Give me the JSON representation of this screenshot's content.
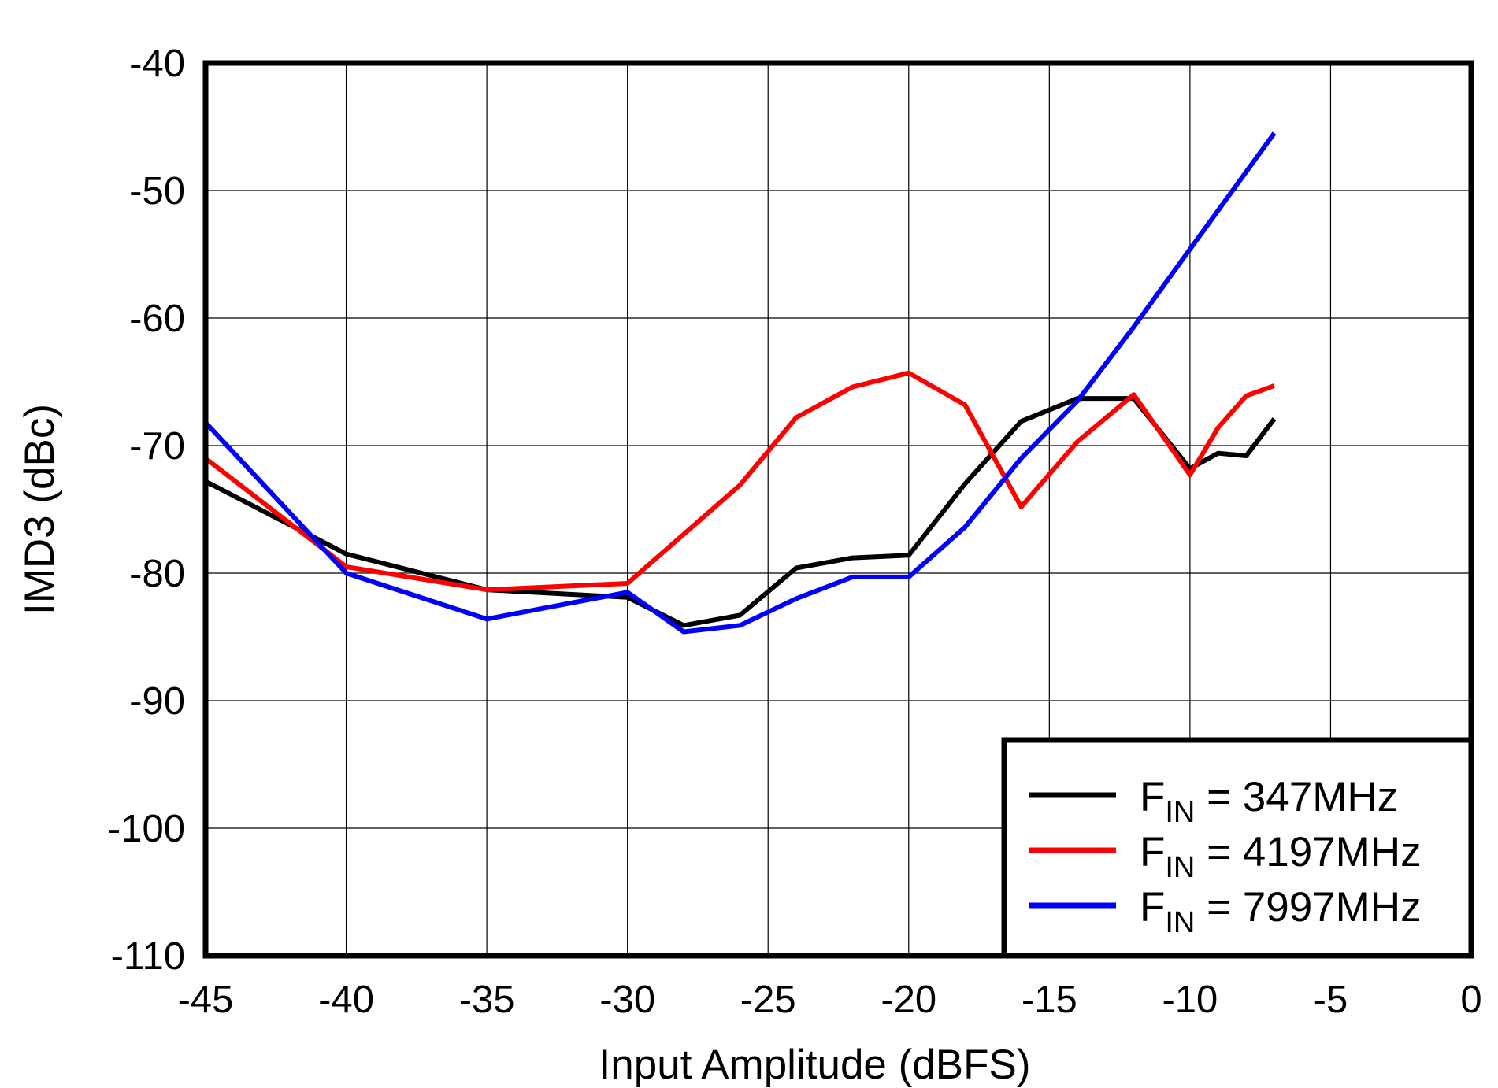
{
  "chart_data": {
    "type": "line",
    "title": "",
    "xlabel": "Input Amplitude  (dBFS)",
    "ylabel": "IMD3 (dBc)",
    "xlim": [
      -45,
      0
    ],
    "ylim": [
      -110,
      -40
    ],
    "xticks": [
      -45,
      -40,
      -35,
      -30,
      -25,
      -20,
      -15,
      -10,
      -5,
      0
    ],
    "yticks": [
      -40,
      -50,
      -60,
      -70,
      -80,
      -90,
      -100,
      -110
    ],
    "grid": true,
    "legend_position": "bottom-right",
    "series": [
      {
        "name": "FIN = 347MHz",
        "name_main": "F",
        "name_sub": "IN",
        "name_rest": " = 347MHz",
        "color": "#000000",
        "x": [
          -45,
          -40,
          -35,
          -30,
          -28,
          -26,
          -24,
          -22,
          -20,
          -18,
          -16,
          -14,
          -12,
          -10,
          -9,
          -8,
          -7
        ],
        "y": [
          -72.8,
          -78.5,
          -81.3,
          -81.9,
          -84.1,
          -83.3,
          -79.6,
          -78.8,
          -78.6,
          -73.0,
          -68.1,
          -66.3,
          -66.3,
          -71.8,
          -70.6,
          -70.8,
          -67.9
        ]
      },
      {
        "name": "FIN = 4197MHz",
        "name_main": "F",
        "name_sub": "IN",
        "name_rest": " = 4197MHz",
        "color": "#ff0000",
        "x": [
          -45,
          -40,
          -35,
          -30,
          -26,
          -24,
          -22,
          -20,
          -18,
          -16,
          -14,
          -12,
          -10,
          -9,
          -8,
          -7
        ],
        "y": [
          -71.0,
          -79.5,
          -81.3,
          -80.8,
          -73.1,
          -67.8,
          -65.4,
          -64.3,
          -66.8,
          -74.8,
          -69.7,
          -66.0,
          -72.3,
          -68.6,
          -66.1,
          -65.3
        ]
      },
      {
        "name": "FIN = 7997MHz",
        "name_main": "F",
        "name_sub": "IN",
        "name_rest": " = 7997MHz",
        "color": "#0000ff",
        "x": [
          -45,
          -40,
          -35,
          -30,
          -28,
          -26,
          -24,
          -22,
          -20,
          -18,
          -16,
          -14,
          -12,
          -10,
          -7
        ],
        "y": [
          -68.2,
          -80.0,
          -83.6,
          -81.5,
          -84.6,
          -84.1,
          -82.0,
          -80.3,
          -80.3,
          -76.4,
          -71.0,
          -66.5,
          -60.7,
          -54.6,
          -45.5
        ]
      }
    ]
  }
}
